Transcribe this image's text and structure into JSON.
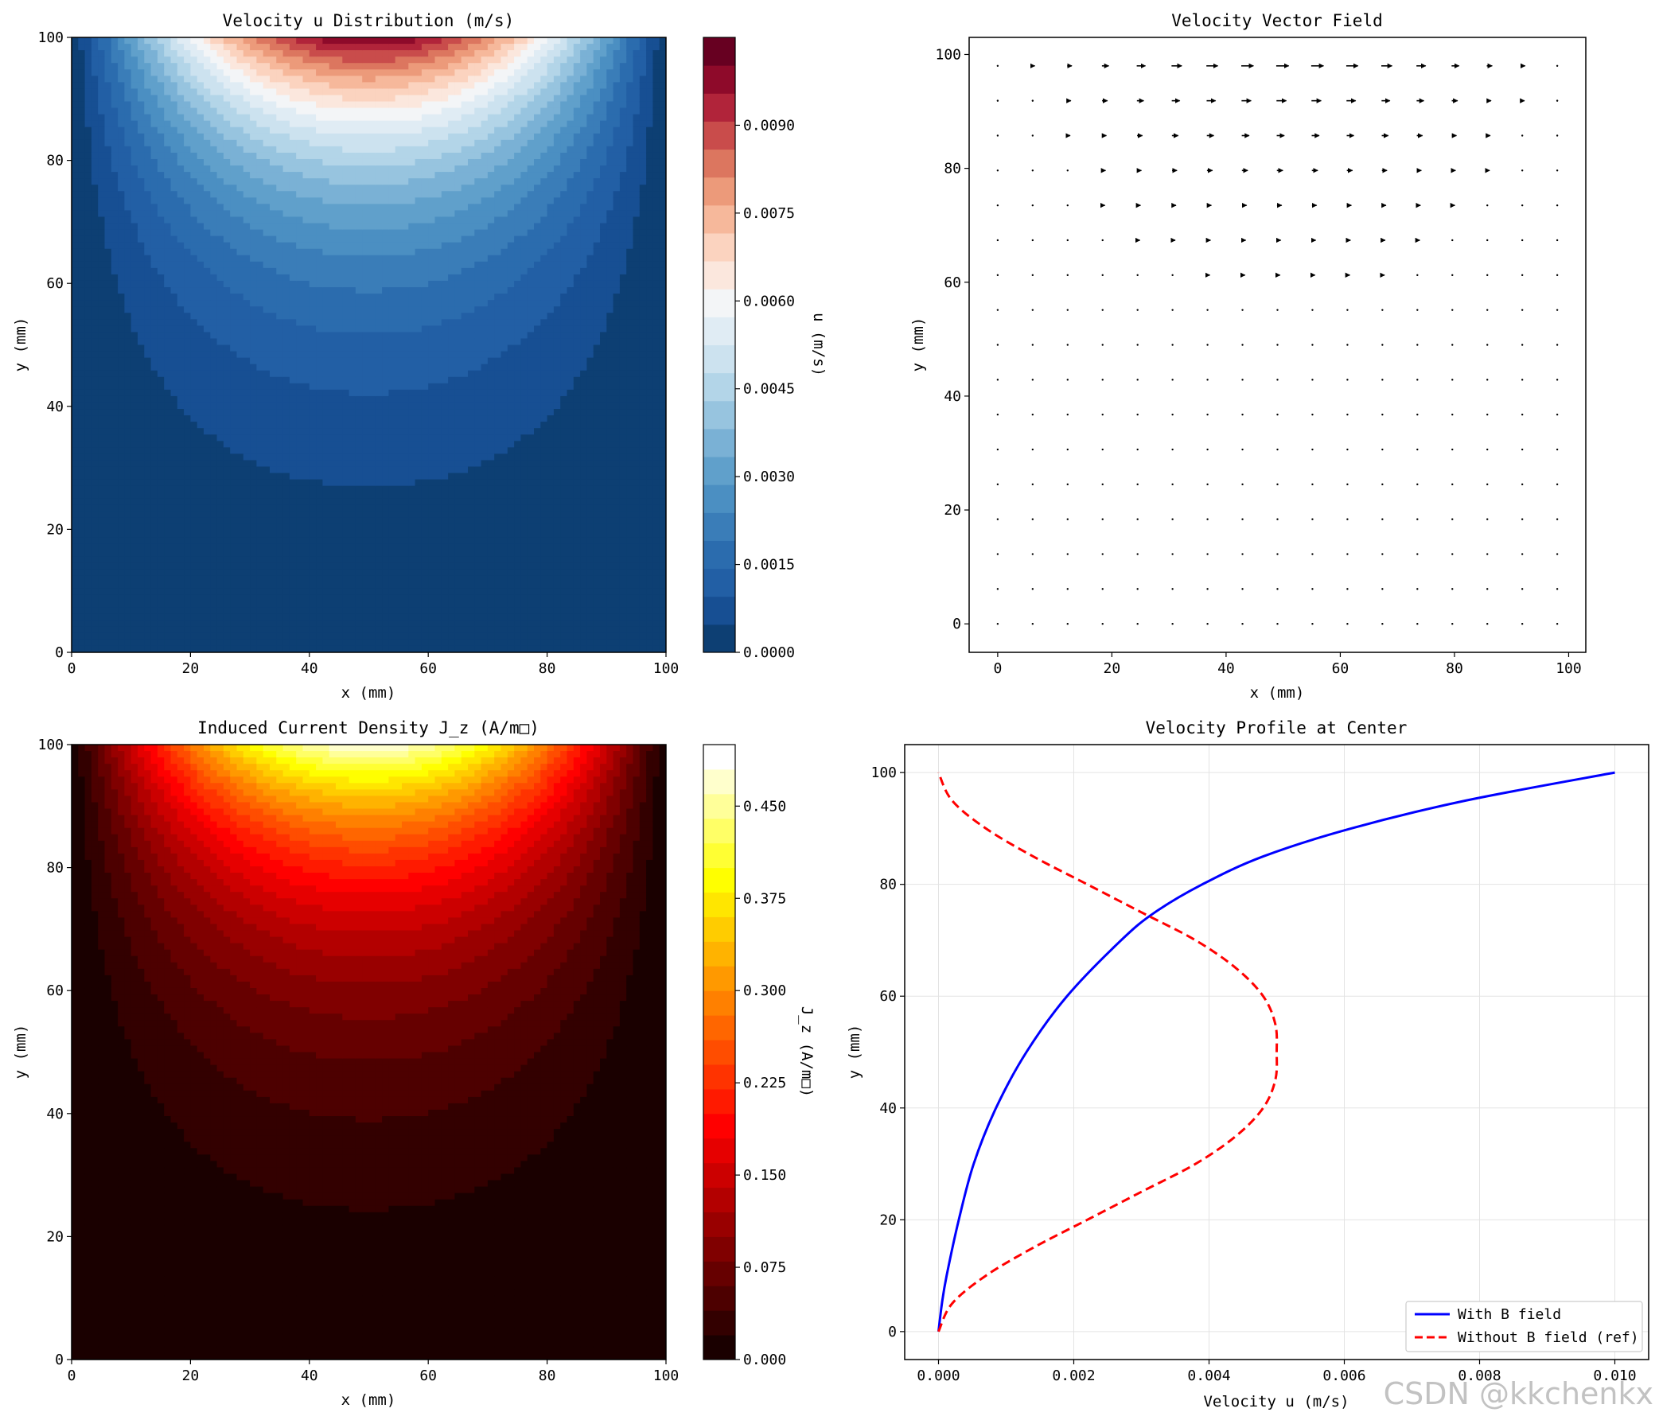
{
  "chart_data": [
    {
      "type": "heatmap",
      "id": "u",
      "title": "Velocity u Distribution (m/s)",
      "xlabel": "x (mm)",
      "ylabel": "y (mm)",
      "xlim": [
        0,
        100
      ],
      "ylim": [
        0,
        100
      ],
      "xticks": [
        "0",
        "20",
        "40",
        "60",
        "80",
        "100"
      ],
      "yticks": [
        "0",
        "20",
        "40",
        "60",
        "80",
        "100"
      ],
      "colormap": "RdBu_r",
      "colorbar_label": "u (m/s)",
      "colorbar_range": [
        0,
        0.0105
      ],
      "colorbar_ticks": [
        "0.0000",
        "0.0015",
        "0.0030",
        "0.0045",
        "0.0060",
        "0.0075",
        "0.0090"
      ],
      "colorbar_tick_values": [
        0,
        0.0015,
        0.003,
        0.0045,
        0.006,
        0.0075,
        0.009
      ],
      "levels": 21,
      "field_max": 0.01,
      "colors": [
        "#0d3f73",
        "#174f93",
        "#225fa5",
        "#2b6cae",
        "#3a7db8",
        "#4b8fc2",
        "#60a0cb",
        "#7ab1d5",
        "#97c4df",
        "#b3d5e8",
        "#cce2ef",
        "#e0ecf4",
        "#f3f5f7",
        "#fbe7dd",
        "#fbd3bf",
        "#f6b89b",
        "#ec9a7a",
        "#dc765f",
        "#c94c4b",
        "#b1243a",
        "#8e0a2a",
        "#670021"
      ]
    },
    {
      "type": "quiver",
      "id": "vec",
      "title": "Velocity Vector Field",
      "xlabel": "x (mm)",
      "ylabel": "y (mm)",
      "xlim": [
        -5,
        103
      ],
      "ylim": [
        -5,
        103
      ],
      "xticks": [
        "0",
        "20",
        "40",
        "60",
        "80",
        "100"
      ],
      "yticks": [
        "0",
        "20",
        "40",
        "60",
        "80",
        "100"
      ],
      "grid_n": 17,
      "grid_range": [
        0,
        98
      ]
    },
    {
      "type": "heatmap",
      "id": "j",
      "title": "Induced Current Density J_z (A/m□)",
      "xlabel": "x (mm)",
      "ylabel": "y (mm)",
      "xlim": [
        0,
        100
      ],
      "ylim": [
        0,
        100
      ],
      "xticks": [
        "0",
        "20",
        "40",
        "60",
        "80",
        "100"
      ],
      "yticks": [
        "0",
        "20",
        "40",
        "60",
        "80",
        "100"
      ],
      "colormap": "hot",
      "colorbar_label": "J_z (A/m□)",
      "colorbar_range": [
        0,
        0.5
      ],
      "colorbar_ticks": [
        "0.000",
        "0.075",
        "0.150",
        "0.225",
        "0.300",
        "0.375",
        "0.450"
      ],
      "colorbar_tick_values": [
        0,
        0.075,
        0.15,
        0.225,
        0.3,
        0.375,
        0.45
      ],
      "levels": 24,
      "field_max": 0.5,
      "colors": [
        "#1a0000",
        "#330000",
        "#4d0000",
        "#660000",
        "#800000",
        "#990000",
        "#b30000",
        "#cc0000",
        "#e60000",
        "#ff0000",
        "#ff1a00",
        "#ff3300",
        "#ff4d00",
        "#ff6600",
        "#ff8000",
        "#ff9900",
        "#ffb300",
        "#ffcc00",
        "#ffe600",
        "#ffff00",
        "#ffff33",
        "#ffff66",
        "#ffff99",
        "#ffffcc",
        "#ffffff"
      ]
    },
    {
      "type": "line",
      "id": "prof",
      "title": "Velocity Profile at Center",
      "xlabel": "Velocity u (m/s)",
      "ylabel": "y (mm)",
      "xlim": [
        -0.0005,
        0.0105
      ],
      "ylim": [
        -5,
        105
      ],
      "xticks": [
        "0.000",
        "0.002",
        "0.004",
        "0.006",
        "0.008",
        "0.010"
      ],
      "xtick_values": [
        0,
        0.002,
        0.004,
        0.006,
        0.008,
        0.01
      ],
      "yticks": [
        "0",
        "20",
        "40",
        "60",
        "80",
        "100"
      ],
      "ytick_values": [
        0,
        20,
        40,
        60,
        80,
        100
      ],
      "grid": true,
      "legend_position": "lower right",
      "series": [
        {
          "name": "With B field",
          "color": "#0000ff",
          "style": "solid",
          "y": [
            0,
            5,
            10,
            20,
            30,
            40,
            50,
            60,
            70,
            75,
            80,
            85,
            90,
            95,
            100
          ],
          "x": [
            0.0,
            5e-05,
            0.00012,
            0.0003,
            0.00052,
            0.00085,
            0.0013,
            0.0019,
            0.0027,
            0.0032,
            0.0039,
            0.0048,
            0.0061,
            0.0078,
            0.01
          ]
        },
        {
          "name": "Without B field (ref)",
          "color": "#ff0000",
          "style": "dashed",
          "y": [
            0,
            5,
            10,
            15,
            20,
            25,
            30,
            35,
            40,
            45,
            50,
            55,
            60,
            65,
            70,
            75,
            80,
            85,
            90,
            95,
            100
          ],
          "x": [
            0.0,
            0.0002,
            0.0007,
            0.0014,
            0.0022,
            0.003,
            0.0038,
            0.0044,
            0.0048,
            0.00498,
            0.005,
            0.00498,
            0.0048,
            0.0044,
            0.0038,
            0.003,
            0.0022,
            0.0014,
            0.0007,
            0.0002,
            0.0
          ]
        }
      ]
    }
  ],
  "watermark": "CSDN @kkchenkx"
}
